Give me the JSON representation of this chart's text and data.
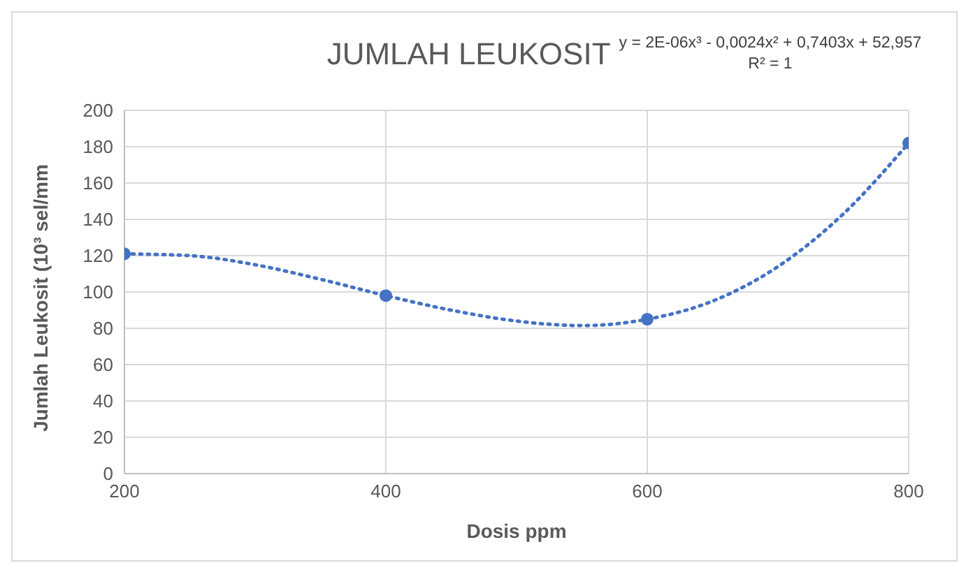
{
  "chart_data": {
    "type": "scatter",
    "title": "JUMLAH LEUKOSIT",
    "xlabel": "Dosis ppm",
    "ylabel": "Jumlah Leukosit (10³ sel/mm",
    "annotations": [
      "y = 2E-06x³ - 0,0024x² + 0,7403x + 52,957",
      "R² = 1"
    ],
    "x": [
      200,
      400,
      600,
      800
    ],
    "series": [
      {
        "color": "#4472c4",
        "values": [
          121,
          98,
          85,
          182
        ],
        "marker": "circle"
      },
      {
        "type": "line",
        "color": "#4472c4",
        "line_style": "dotted",
        "marker": "none",
        "x": [
          200,
          250,
          300,
          350,
          400,
          450,
          500,
          550,
          600,
          650,
          700,
          750,
          800
        ],
        "values": [
          121,
          120,
          115,
          107,
          98,
          90,
          84,
          81.5,
          85,
          95,
          114,
          143,
          182
        ]
      }
    ],
    "xlim": [
      200,
      800
    ],
    "xticks": [
      200,
      400,
      600,
      800
    ],
    "ylim": [
      0,
      200
    ],
    "yticks": [
      0,
      20,
      40,
      60,
      80,
      100,
      120,
      140,
      160,
      180,
      200
    ],
    "grid": true
  }
}
